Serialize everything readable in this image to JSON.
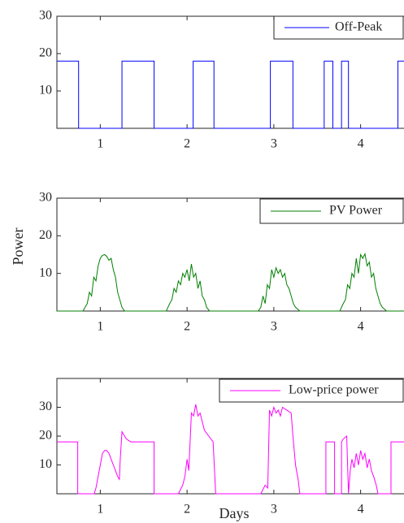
{
  "chart_data": [
    {
      "type": "line",
      "x": [
        0.5,
        0.75,
        0.75,
        1.25,
        1.25,
        1.62,
        1.62,
        2.07,
        2.07,
        2.31,
        2.31,
        2.96,
        2.96,
        3.22,
        3.22,
        3.58,
        3.58,
        3.68,
        3.68,
        3.78,
        3.78,
        3.86,
        3.86,
        4.43,
        4.43,
        4.5
      ],
      "series": [
        {
          "name": "Off-Peak",
          "color": "#0000ff",
          "values": [
            18,
            18,
            0,
            0,
            18,
            18,
            0,
            0,
            18,
            18,
            0,
            0,
            18,
            18,
            0,
            0,
            18,
            18,
            0,
            0,
            18,
            18,
            0,
            0,
            18,
            18
          ]
        }
      ],
      "xlim": [
        0.5,
        4.5
      ],
      "ylim": [
        0,
        30
      ],
      "xticks": [
        1,
        2,
        3,
        4
      ],
      "yticks": [
        10,
        20,
        30
      ]
    },
    {
      "type": "line",
      "ylabel": "Power",
      "x": [
        0.5,
        0.8,
        0.85,
        0.875,
        0.9,
        0.925,
        0.95,
        0.975,
        1.0,
        1.025,
        1.05,
        1.075,
        1.1,
        1.125,
        1.15,
        1.175,
        1.2,
        1.225,
        1.25,
        1.28,
        1.76,
        1.8,
        1.825,
        1.85,
        1.875,
        1.9,
        1.925,
        1.95,
        1.975,
        2.0,
        2.025,
        2.05,
        2.075,
        2.1,
        2.125,
        2.15,
        2.175,
        2.2,
        2.225,
        2.26,
        2.82,
        2.85,
        2.875,
        2.9,
        2.925,
        2.95,
        2.975,
        3.0,
        3.025,
        3.05,
        3.075,
        3.1,
        3.125,
        3.15,
        3.175,
        3.2,
        3.225,
        3.25,
        3.3,
        3.76,
        3.8,
        3.825,
        3.85,
        3.875,
        3.9,
        3.925,
        3.95,
        3.975,
        4.0,
        4.025,
        4.05,
        4.075,
        4.1,
        4.125,
        4.15,
        4.175,
        4.2,
        4.225,
        4.25,
        4.3,
        4.5
      ],
      "series": [
        {
          "name": "PV Power",
          "color": "#007f00",
          "values": [
            0,
            0,
            2,
            5,
            4,
            9,
            8,
            12,
            14,
            14.8,
            15,
            14.5,
            13.5,
            14,
            11,
            9,
            5,
            3,
            1,
            0,
            0,
            2,
            3,
            6,
            5,
            8,
            7,
            10,
            9,
            11,
            8,
            12.5,
            9,
            10,
            6,
            8,
            4,
            3,
            1,
            0,
            0,
            1,
            4,
            2,
            7,
            6,
            11,
            9,
            11.5,
            10,
            11,
            9,
            10,
            7,
            6,
            4,
            2,
            1,
            0,
            0,
            2,
            3,
            7,
            6,
            10,
            9,
            14,
            10,
            15,
            14,
            15.2,
            12,
            13,
            9,
            10,
            6,
            4,
            2,
            1,
            0,
            0
          ]
        }
      ],
      "xlim": [
        0.5,
        4.5
      ],
      "ylim": [
        0,
        30
      ],
      "xticks": [
        1,
        2,
        3,
        4
      ],
      "yticks": [
        10,
        20,
        30
      ]
    },
    {
      "type": "line",
      "xlabel": "Days",
      "x": [
        0.5,
        0.74,
        0.74,
        0.93,
        0.95,
        0.975,
        1.0,
        1.025,
        1.05,
        1.075,
        1.1,
        1.125,
        1.15,
        1.175,
        1.2,
        1.22,
        1.23,
        1.25,
        1.3,
        1.35,
        1.62,
        1.62,
        1.9,
        1.95,
        1.975,
        2.0,
        2.02,
        2.05,
        2.075,
        2.1,
        2.125,
        2.15,
        2.175,
        2.2,
        2.25,
        2.3,
        2.33,
        2.85,
        2.9,
        2.93,
        2.95,
        2.975,
        3.0,
        3.025,
        3.05,
        3.075,
        3.1,
        3.15,
        3.2,
        3.22,
        3.25,
        3.28,
        3.3,
        3.6,
        3.6,
        3.7,
        3.7,
        3.78,
        3.78,
        3.8,
        3.84,
        3.86,
        3.88,
        3.9,
        3.925,
        3.95,
        3.975,
        4.0,
        4.025,
        4.05,
        4.075,
        4.1,
        4.125,
        4.15,
        4.18,
        4.2,
        4.35,
        4.35,
        4.5
      ],
      "series": [
        {
          "name": "Low-price power",
          "color": "#ff00ff",
          "values": [
            18,
            18,
            0,
            0,
            2,
            6,
            10,
            14,
            15,
            15,
            14,
            12,
            10,
            8,
            6,
            5,
            12,
            21.5,
            19,
            18,
            18,
            0,
            0,
            3,
            6,
            12,
            8,
            28,
            27,
            31,
            27,
            28,
            25,
            22,
            20,
            18,
            0,
            0,
            3,
            2,
            29,
            27,
            30,
            28,
            29,
            27,
            30,
            29,
            28,
            20,
            10,
            5,
            0,
            0,
            18,
            18,
            0,
            0,
            18,
            19,
            20,
            0,
            8,
            12,
            9,
            14,
            10,
            15,
            12,
            14,
            9,
            12,
            8,
            6,
            3,
            0,
            0,
            18,
            18
          ]
        }
      ],
      "xlim": [
        0.5,
        4.5
      ],
      "ylim": [
        0,
        40
      ],
      "xticks": [
        1,
        2,
        3,
        4
      ],
      "yticks": [
        10,
        20,
        30
      ]
    }
  ]
}
